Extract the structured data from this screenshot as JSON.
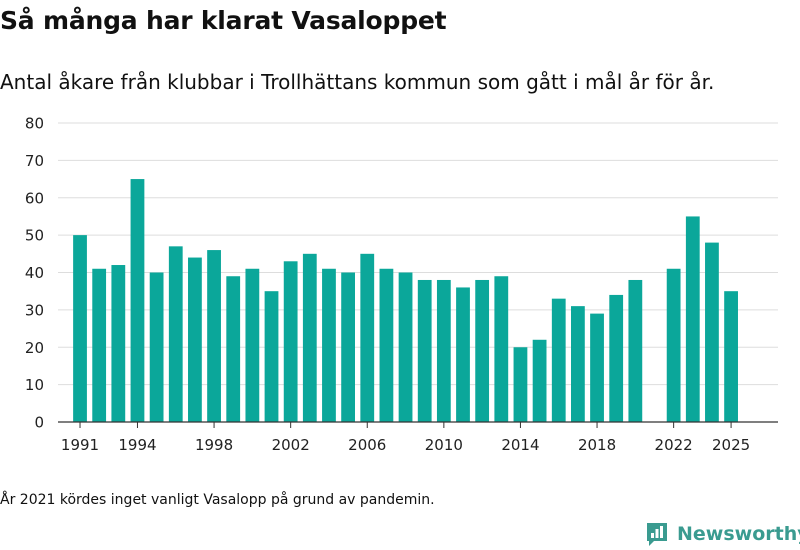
{
  "title": "Så många har klarat Vasaloppet",
  "subtitle": "Antal åkare från klubbar i Trollhättans kommun som gått i mål år för år.",
  "footnote": "År 2021 kördes inget vanligt Vasalopp på grund av pandemin.",
  "brand": {
    "name": "Newsworthy"
  },
  "colors": {
    "bar": "#0ba79a",
    "grid": "#dddddd",
    "axis": "#333333",
    "brand": "#3a9b90"
  },
  "chart_data": {
    "type": "bar",
    "title": "Så många har klarat Vasaloppet",
    "subtitle": "Antal åkare från klubbar i Trollhättans kommun som gått i mål år för år.",
    "xlabel": "",
    "ylabel": "",
    "ylim": [
      0,
      80
    ],
    "yticks": [
      0,
      10,
      20,
      30,
      40,
      50,
      60,
      70,
      80
    ],
    "xticks": [
      1991,
      1994,
      1998,
      2002,
      2006,
      2010,
      2014,
      2018,
      2022,
      2025
    ],
    "grid": true,
    "categories": [
      1991,
      1992,
      1993,
      1994,
      1995,
      1996,
      1997,
      1998,
      1999,
      2000,
      2001,
      2002,
      2003,
      2004,
      2005,
      2006,
      2007,
      2008,
      2009,
      2010,
      2011,
      2012,
      2013,
      2014,
      2015,
      2016,
      2017,
      2018,
      2019,
      2020,
      2022,
      2023,
      2024,
      2025
    ],
    "values": [
      50,
      41,
      42,
      65,
      40,
      47,
      44,
      46,
      39,
      41,
      35,
      43,
      45,
      41,
      40,
      45,
      41,
      40,
      38,
      38,
      36,
      38,
      39,
      20,
      22,
      33,
      31,
      29,
      34,
      38,
      41,
      55,
      48,
      35
    ]
  }
}
